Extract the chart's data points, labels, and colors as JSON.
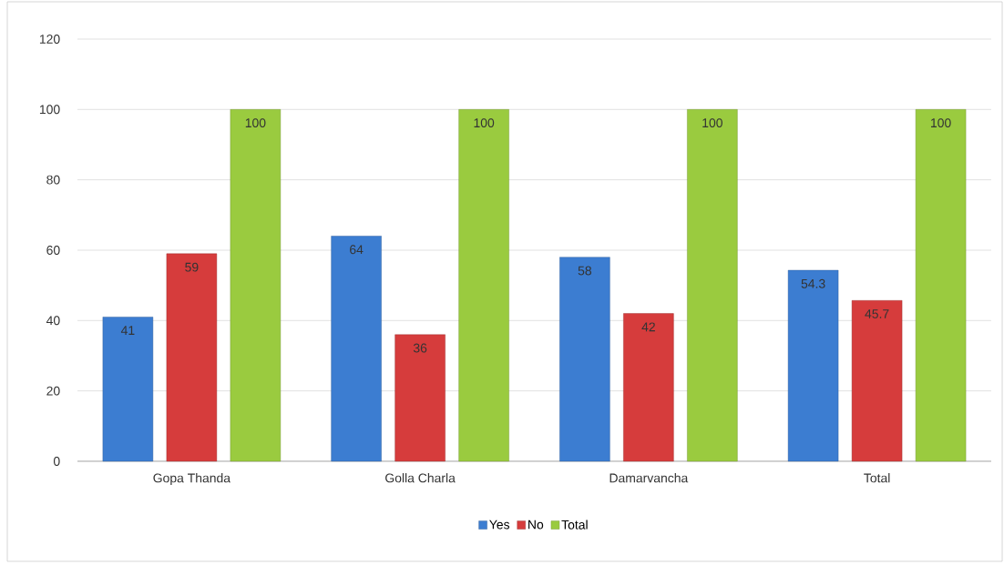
{
  "chart_data": {
    "type": "bar",
    "categories": [
      "Gopa Thanda",
      "Golla Charla",
      "Damarvancha",
      "Total"
    ],
    "series": [
      {
        "name": "Yes",
        "color": "#3c7dd1",
        "values": [
          41,
          64,
          58,
          54.3
        ]
      },
      {
        "name": "No",
        "color": "#d63c3c",
        "values": [
          59,
          36,
          42,
          45.7
        ]
      },
      {
        "name": "Total",
        "color": "#9acb3f",
        "values": [
          100,
          100,
          100,
          100
        ]
      }
    ],
    "ylim": [
      0,
      120
    ],
    "yticks": [
      0,
      20,
      40,
      60,
      80,
      100,
      120
    ],
    "grid": "y",
    "legend": "bottom",
    "data_labels": true
  }
}
